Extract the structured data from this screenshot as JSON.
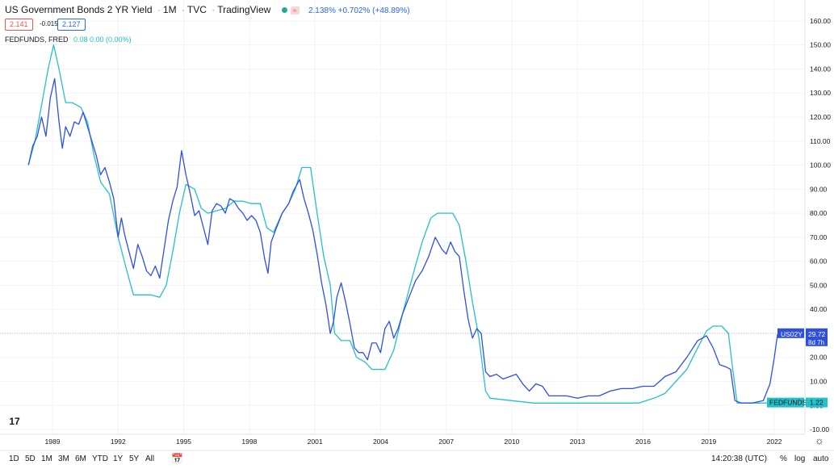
{
  "header": {
    "title": "US Government Bonds 2 YR Yield",
    "interval": "1M",
    "source": "TVC",
    "publisher": "TradingView",
    "compare_badge": "≈",
    "quote": "2.138% +0.702% (+48.89%)",
    "bid": "2.141",
    "spread": "-0.015",
    "ask": "2.127"
  },
  "overlay_legend": {
    "name": "FEDFUNDS, FRED",
    "values": "0.08 0.00 (0.00%)"
  },
  "price_labels": {
    "main_name": "US02Y",
    "main_value": "29.72",
    "main_sub": "8d 7h",
    "overlay_name": "FEDFUNDS",
    "overlay_value": "1.22"
  },
  "bottom_bar": {
    "ranges": [
      "1D",
      "5D",
      "1M",
      "3M",
      "6M",
      "YTD",
      "1Y",
      "5Y",
      "All"
    ],
    "calendar_icon": "calendar-icon",
    "time": "14:20:38 (UTC)",
    "pct": "%",
    "log": "log",
    "auto": "auto",
    "settings_icon": "gear-icon"
  },
  "colors": {
    "main_series": "#2f4fe0",
    "overlay_series": "#22c1c8",
    "axis_text": "#131722",
    "grid": "#f0f3fa"
  },
  "chart_data": {
    "type": "line",
    "y_unit": "%",
    "ylim": [
      -12,
      164
    ],
    "y_ticks": [
      160,
      150,
      140,
      130,
      120,
      110,
      100,
      90,
      80,
      70,
      60,
      50,
      40,
      30,
      20,
      10,
      0,
      -10
    ],
    "y_tick_labels": [
      "160.00",
      "150.00",
      "140.00",
      "130.00",
      "120.00",
      "110.00",
      "100.00",
      "90.00",
      "80.00",
      "70.00",
      "60.00",
      "50.00",
      "40.00",
      "30.00",
      "20.00",
      "10.00",
      "0.00",
      "-10.00"
    ],
    "x_range": [
      1986.6,
      2023.4
    ],
    "x_ticks": [
      1989,
      1992,
      1995,
      1998,
      2001,
      2004,
      2007,
      2010,
      2013,
      2016,
      2019,
      2022
    ],
    "x_tick_labels": [
      "1989",
      "1992",
      "1995",
      "1998",
      "2001",
      "2004",
      "2007",
      "2010",
      "2013",
      "2016",
      "2019",
      "2022"
    ],
    "grid": true,
    "series": [
      {
        "name": "US02Y",
        "points": [
          [
            1987.9,
            100
          ],
          [
            1988.1,
            108
          ],
          [
            1988.3,
            112
          ],
          [
            1988.5,
            120
          ],
          [
            1988.7,
            112
          ],
          [
            1988.9,
            128
          ],
          [
            1989.1,
            136
          ],
          [
            1989.3,
            118
          ],
          [
            1989.45,
            107
          ],
          [
            1989.6,
            116
          ],
          [
            1989.8,
            112
          ],
          [
            1990.0,
            118
          ],
          [
            1990.2,
            117
          ],
          [
            1990.4,
            122
          ],
          [
            1990.6,
            116
          ],
          [
            1990.8,
            110
          ],
          [
            1991.0,
            104
          ],
          [
            1991.2,
            96
          ],
          [
            1991.4,
            99
          ],
          [
            1991.6,
            93
          ],
          [
            1991.8,
            86
          ],
          [
            1992.0,
            70
          ],
          [
            1992.15,
            78
          ],
          [
            1992.3,
            71
          ],
          [
            1992.5,
            64
          ],
          [
            1992.7,
            57
          ],
          [
            1992.9,
            67
          ],
          [
            1993.1,
            62
          ],
          [
            1993.3,
            56
          ],
          [
            1993.5,
            54
          ],
          [
            1993.7,
            58
          ],
          [
            1993.9,
            53
          ],
          [
            1994.1,
            65
          ],
          [
            1994.3,
            77
          ],
          [
            1994.5,
            85
          ],
          [
            1994.7,
            91
          ],
          [
            1994.9,
            106
          ],
          [
            1995.1,
            96
          ],
          [
            1995.3,
            88
          ],
          [
            1995.5,
            79
          ],
          [
            1995.7,
            81
          ],
          [
            1995.9,
            74
          ],
          [
            1996.1,
            67
          ],
          [
            1996.3,
            81
          ],
          [
            1996.5,
            84
          ],
          [
            1996.7,
            83
          ],
          [
            1996.9,
            80
          ],
          [
            1997.1,
            86
          ],
          [
            1997.3,
            85
          ],
          [
            1997.5,
            82
          ],
          [
            1997.7,
            80
          ],
          [
            1997.9,
            77
          ],
          [
            1998.1,
            79
          ],
          [
            1998.3,
            77
          ],
          [
            1998.5,
            72
          ],
          [
            1998.7,
            61
          ],
          [
            1998.85,
            55
          ],
          [
            1999.0,
            68
          ],
          [
            1999.2,
            73
          ],
          [
            1999.5,
            80
          ],
          [
            1999.8,
            84
          ],
          [
            2000.0,
            89
          ],
          [
            2000.3,
            94
          ],
          [
            2000.5,
            86
          ],
          [
            2000.7,
            80
          ],
          [
            2000.9,
            73
          ],
          [
            2001.1,
            63
          ],
          [
            2001.3,
            51
          ],
          [
            2001.5,
            42
          ],
          [
            2001.7,
            30
          ],
          [
            2001.85,
            35
          ],
          [
            2002.0,
            45
          ],
          [
            2002.2,
            51
          ],
          [
            2002.4,
            43
          ],
          [
            2002.6,
            34
          ],
          [
            2002.8,
            24
          ],
          [
            2003.0,
            22
          ],
          [
            2003.2,
            22
          ],
          [
            2003.4,
            19
          ],
          [
            2003.6,
            26
          ],
          [
            2003.8,
            26
          ],
          [
            2004.0,
            22
          ],
          [
            2004.2,
            32
          ],
          [
            2004.4,
            35
          ],
          [
            2004.6,
            28
          ],
          [
            2004.8,
            32
          ],
          [
            2005.0,
            38
          ],
          [
            2005.3,
            45
          ],
          [
            2005.6,
            52
          ],
          [
            2005.9,
            56
          ],
          [
            2006.2,
            62
          ],
          [
            2006.5,
            70
          ],
          [
            2006.8,
            65
          ],
          [
            2007.0,
            63
          ],
          [
            2007.2,
            68
          ],
          [
            2007.4,
            64
          ],
          [
            2007.6,
            62
          ],
          [
            2007.8,
            48
          ],
          [
            2008.0,
            36
          ],
          [
            2008.2,
            28
          ],
          [
            2008.4,
            32
          ],
          [
            2008.6,
            30
          ],
          [
            2008.8,
            14
          ],
          [
            2009.0,
            12
          ],
          [
            2009.3,
            13
          ],
          [
            2009.6,
            11
          ],
          [
            2009.9,
            12
          ],
          [
            2010.2,
            13
          ],
          [
            2010.5,
            9
          ],
          [
            2010.8,
            6
          ],
          [
            2011.1,
            9
          ],
          [
            2011.4,
            8
          ],
          [
            2011.7,
            4
          ],
          [
            2012.0,
            4
          ],
          [
            2012.5,
            4
          ],
          [
            2013.0,
            3
          ],
          [
            2013.5,
            4
          ],
          [
            2014.0,
            4
          ],
          [
            2014.5,
            6
          ],
          [
            2015.0,
            7
          ],
          [
            2015.5,
            7
          ],
          [
            2016.0,
            8
          ],
          [
            2016.5,
            8
          ],
          [
            2017.0,
            12
          ],
          [
            2017.5,
            14
          ],
          [
            2018.0,
            20
          ],
          [
            2018.5,
            27
          ],
          [
            2018.9,
            29
          ],
          [
            2019.2,
            24
          ],
          [
            2019.5,
            17
          ],
          [
            2019.8,
            16
          ],
          [
            2020.0,
            15
          ],
          [
            2020.2,
            2
          ],
          [
            2020.5,
            1
          ],
          [
            2021.0,
            1
          ],
          [
            2021.5,
            2
          ],
          [
            2021.8,
            9
          ],
          [
            2022.0,
            20
          ],
          [
            2022.15,
            29.72
          ]
        ]
      },
      {
        "name": "FEDFUNDS",
        "points": [
          [
            1987.9,
            100
          ],
          [
            1988.2,
            110
          ],
          [
            1988.5,
            125
          ],
          [
            1988.8,
            140
          ],
          [
            1989.05,
            150
          ],
          [
            1989.3,
            140
          ],
          [
            1989.6,
            126
          ],
          [
            1989.9,
            126
          ],
          [
            1990.3,
            124
          ],
          [
            1990.6,
            118
          ],
          [
            1990.9,
            104
          ],
          [
            1991.2,
            93
          ],
          [
            1991.6,
            88
          ],
          [
            1992.0,
            70
          ],
          [
            1992.4,
            56
          ],
          [
            1992.7,
            46
          ],
          [
            1993.0,
            46
          ],
          [
            1993.5,
            46
          ],
          [
            1993.9,
            45
          ],
          [
            1994.2,
            50
          ],
          [
            1994.5,
            64
          ],
          [
            1994.8,
            80
          ],
          [
            1995.1,
            92
          ],
          [
            1995.5,
            90
          ],
          [
            1995.8,
            82
          ],
          [
            1996.1,
            80
          ],
          [
            1996.5,
            81
          ],
          [
            1996.9,
            82
          ],
          [
            1997.3,
            85
          ],
          [
            1997.7,
            85
          ],
          [
            1998.1,
            84
          ],
          [
            1998.5,
            84
          ],
          [
            1998.8,
            74
          ],
          [
            1999.1,
            72
          ],
          [
            1999.5,
            80
          ],
          [
            1999.8,
            84
          ],
          [
            2000.1,
            90
          ],
          [
            2000.4,
            99
          ],
          [
            2000.8,
            99
          ],
          [
            2001.1,
            80
          ],
          [
            2001.4,
            62
          ],
          [
            2001.7,
            50
          ],
          [
            2001.9,
            30
          ],
          [
            2002.2,
            27
          ],
          [
            2002.6,
            27
          ],
          [
            2002.9,
            20
          ],
          [
            2003.3,
            18
          ],
          [
            2003.6,
            15
          ],
          [
            2004.2,
            15
          ],
          [
            2004.6,
            23
          ],
          [
            2005.0,
            38
          ],
          [
            2005.5,
            55
          ],
          [
            2005.9,
            68
          ],
          [
            2006.3,
            78
          ],
          [
            2006.6,
            80
          ],
          [
            2007.0,
            80
          ],
          [
            2007.3,
            80
          ],
          [
            2007.6,
            75
          ],
          [
            2007.9,
            60
          ],
          [
            2008.2,
            43
          ],
          [
            2008.5,
            28
          ],
          [
            2008.8,
            6
          ],
          [
            2009.0,
            3
          ],
          [
            2010.0,
            2
          ],
          [
            2011.0,
            1
          ],
          [
            2012.0,
            1
          ],
          [
            2014.0,
            1
          ],
          [
            2015.8,
            1
          ],
          [
            2016.5,
            3
          ],
          [
            2017.0,
            5
          ],
          [
            2017.5,
            10
          ],
          [
            2018.0,
            15
          ],
          [
            2018.5,
            24
          ],
          [
            2018.9,
            31
          ],
          [
            2019.2,
            33
          ],
          [
            2019.6,
            33
          ],
          [
            2019.9,
            30
          ],
          [
            2020.1,
            15
          ],
          [
            2020.3,
            1
          ],
          [
            2021.0,
            1
          ],
          [
            2021.5,
            1
          ],
          [
            2022.0,
            1.22
          ]
        ]
      }
    ],
    "last_values": {
      "US02Y": 29.72,
      "FEDFUNDS": 1.22
    }
  }
}
